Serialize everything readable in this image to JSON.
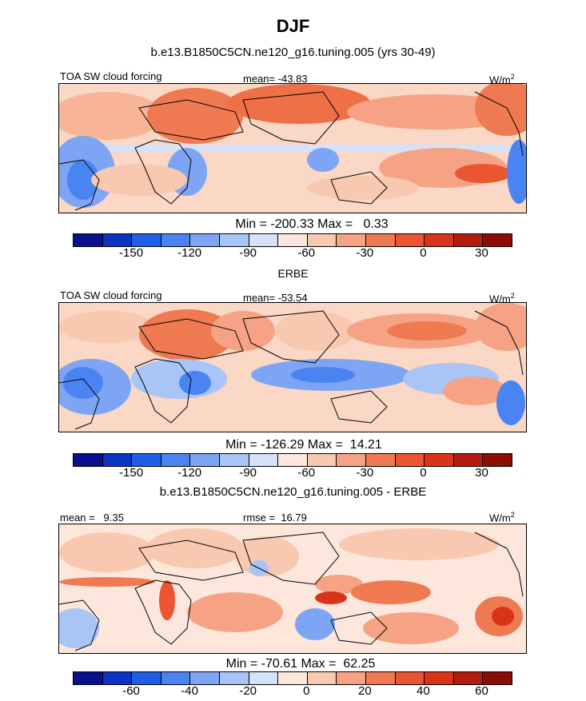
{
  "title": "DJF",
  "palette": [
    "#08108c",
    "#0b34c4",
    "#1f5fe6",
    "#4a84f2",
    "#7ea5f4",
    "#a9c4f6",
    "#d5e3fa",
    "#fde7dc",
    "#f9c8b1",
    "#f5a384",
    "#ef7a52",
    "#ea5532",
    "#d9331a",
    "#b31d10",
    "#8c0c06"
  ],
  "panels": [
    {
      "subtitle": "b.e13.B1850C5CN.ne120_g16.tuning.005 (yrs 30-49)",
      "left_label": "TOA SW cloud forcing",
      "center_label": "mean= -43.83",
      "units": "W/m",
      "units_sup": "2",
      "minmax": "Min = -200.33 Max =   0.33",
      "tick_labels": [
        "-150",
        "-120",
        "-90",
        "-60",
        "-30",
        "0",
        "30"
      ]
    },
    {
      "subtitle": "ERBE",
      "left_label": "TOA SW cloud forcing",
      "center_label": "mean= -53.54",
      "units": "W/m",
      "units_sup": "2",
      "minmax": "Min = -126.29 Max =  14.21",
      "tick_labels": [
        "-150",
        "-120",
        "-90",
        "-60",
        "-30",
        "0",
        "30"
      ]
    },
    {
      "subtitle": "b.e13.B1850C5CN.ne120_g16.tuning.005 - ERBE",
      "left_label": "mean =   9.35",
      "center_label": "rmse =  16.79",
      "units": "W/m",
      "units_sup": "2",
      "minmax": "Min = -70.61 Max =  62.25",
      "tick_labels": [
        "-60",
        "-40",
        "-20",
        "0",
        "20",
        "40",
        "60"
      ]
    }
  ],
  "chart_data": [
    {
      "type": "heatmap",
      "title": "b.e13.B1850C5CN.ne120_g16.tuning.005 (yrs 30-49)",
      "variable": "TOA SW cloud forcing",
      "units": "W/m2",
      "mean": -43.83,
      "min": -200.33,
      "max": 0.33,
      "colorbar_ticks": [
        -150,
        -120,
        -90,
        -60,
        -30,
        0,
        30
      ],
      "colorbar_levels": 15
    },
    {
      "type": "heatmap",
      "title": "ERBE",
      "variable": "TOA SW cloud forcing",
      "units": "W/m2",
      "mean": -53.54,
      "min": -126.29,
      "max": 14.21,
      "colorbar_ticks": [
        -150,
        -120,
        -90,
        -60,
        -30,
        0,
        30
      ],
      "colorbar_levels": 15
    },
    {
      "type": "heatmap",
      "title": "b.e13.B1850C5CN.ne120_g16.tuning.005 - ERBE",
      "units": "W/m2",
      "mean": 9.35,
      "rmse": 16.79,
      "min": -70.61,
      "max": 62.25,
      "colorbar_ticks": [
        -60,
        -40,
        -20,
        0,
        20,
        40,
        60
      ],
      "colorbar_levels": 15
    }
  ]
}
